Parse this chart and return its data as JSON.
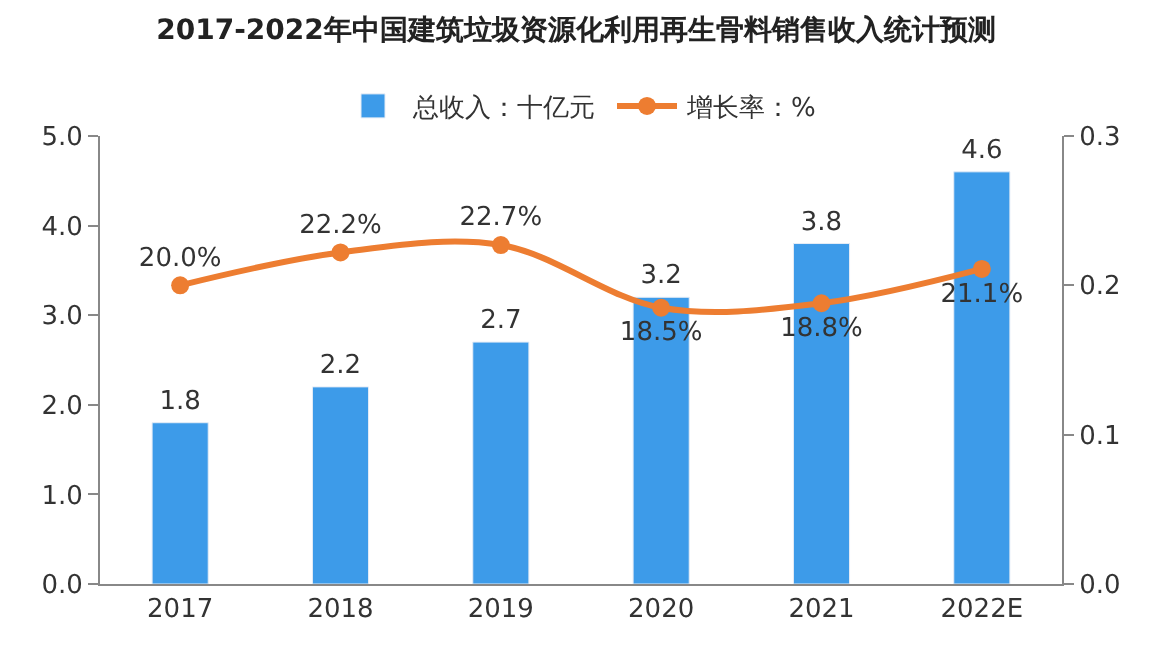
{
  "chart_data": {
    "type": "bar",
    "title": "2017-2022年中国建筑垃圾资源化利用再生骨料销售收入统计预测",
    "categories": [
      "2017",
      "2018",
      "2019",
      "2020",
      "2021",
      "2022E"
    ],
    "series": [
      {
        "name": "总收入：十亿元",
        "color": "#3d9be9",
        "values": [
          1.8,
          2.2,
          2.7,
          3.2,
          3.8,
          4.6
        ],
        "value_labels": [
          "1.8",
          "2.2",
          "2.7",
          "3.2",
          "3.8",
          "4.6"
        ]
      },
      {
        "name": "增长率：%",
        "type": "line",
        "axis": "y2",
        "color": "#ed7d31",
        "marker": "circle",
        "values": [
          0.2,
          0.222,
          0.227,
          0.185,
          0.188,
          0.211
        ],
        "value_labels": [
          "20.0%",
          "22.2%",
          "22.7%",
          "18.5%",
          "18.8%",
          "21.1%"
        ]
      }
    ],
    "ylim": [
      0,
      5
    ],
    "yticks": [
      {
        "value": 0,
        "label": "0.0"
      },
      {
        "value": 1,
        "label": "1.0"
      },
      {
        "value": 2,
        "label": "2.0"
      },
      {
        "value": 3,
        "label": "3.0"
      },
      {
        "value": 4,
        "label": "4.0"
      },
      {
        "value": 5,
        "label": "5.0"
      }
    ],
    "y2lim": [
      0,
      0.3
    ],
    "y2ticks": [
      {
        "value": 0,
        "label": "0.0"
      },
      0.1,
      0.2,
      0.3
    ],
    "legend": "top"
  }
}
